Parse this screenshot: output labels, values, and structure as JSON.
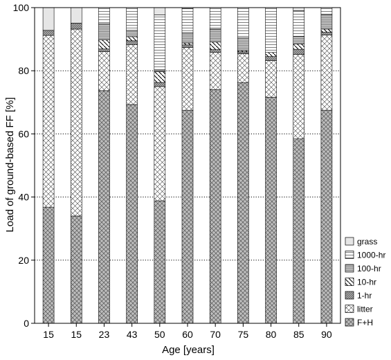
{
  "chart_data": {
    "type": "bar",
    "stacked": true,
    "xlabel": "Age [years]",
    "ylabel": "Load of ground-based FF [%]",
    "ylim": [
      0,
      100
    ],
    "yticks": [
      0,
      20,
      40,
      60,
      80,
      100
    ],
    "grid": "horizontal dotted",
    "legend_position": "bottom-right",
    "categories": [
      "15",
      "15",
      "23",
      "43",
      "50",
      "60",
      "70",
      "75",
      "80",
      "85",
      "90"
    ],
    "series": [
      {
        "name": "F+H",
        "pattern": "crosshatch-dark",
        "values": [
          36.8,
          34.0,
          73.7,
          69.3,
          38.8,
          67.5,
          74.0,
          76.2,
          71.6,
          58.4,
          67.5
        ]
      },
      {
        "name": "litter",
        "pattern": "crosshatch-light",
        "values": [
          54.4,
          59.2,
          12.4,
          19.0,
          36.2,
          19.9,
          11.8,
          9.2,
          11.6,
          26.8,
          23.8
        ]
      },
      {
        "name": "1-hr",
        "pattern": "diag-hatch-dense",
        "values": [
          1.6,
          1.9,
          0.8,
          1.2,
          1.3,
          0.8,
          0.9,
          0.6,
          1.3,
          1.6,
          0.9
        ]
      },
      {
        "name": "10-hr",
        "pattern": "diag-hatch-sparse",
        "values": [
          0,
          0,
          2.9,
          1.3,
          3.4,
          0.6,
          2.4,
          0.4,
          1.3,
          1.7,
          1.0
        ]
      },
      {
        "name": "100-hr",
        "pattern": "horizontal-lines-dense",
        "values": [
          0,
          0,
          5.1,
          2.0,
          0.4,
          3.2,
          4.1,
          4.0,
          0,
          2.4,
          4.6
        ]
      },
      {
        "name": "1000-hr",
        "pattern": "horizontal-lines",
        "values": [
          0,
          0,
          5.1,
          7.2,
          17.6,
          7.7,
          6.8,
          9.6,
          14.2,
          8.1,
          2.2
        ]
      },
      {
        "name": "grass",
        "pattern": "solid-light",
        "values": [
          7.2,
          4.9,
          0,
          0,
          2.3,
          0.3,
          0,
          0,
          0,
          1.0,
          0
        ]
      }
    ],
    "legend_order": [
      "grass",
      "1000-hr",
      "100-hr",
      "10-hr",
      "1-hr",
      "litter",
      "F+H"
    ]
  }
}
